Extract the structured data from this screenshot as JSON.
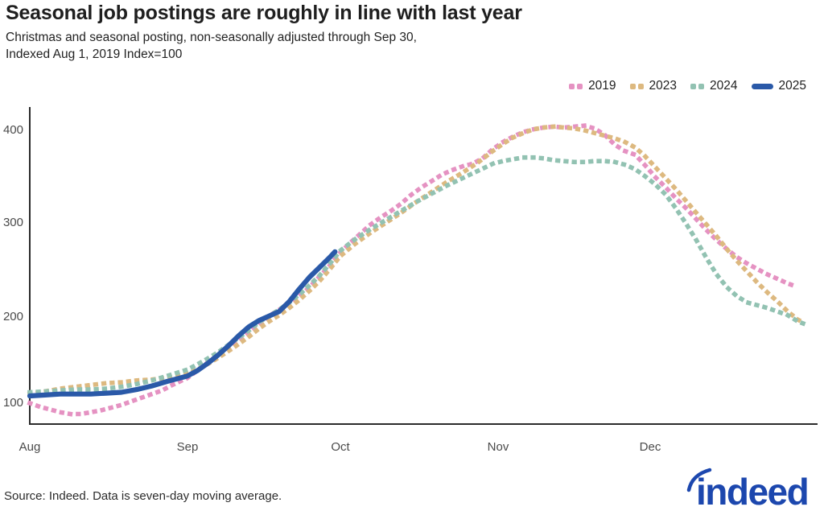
{
  "header": {
    "title": "Seasonal job postings are roughly in line with last year",
    "subtitle_line1": "Christmas and seasonal posting, non-seasonally adjusted through Sep 30,",
    "subtitle_line2": "Indexed Aug 1, 2019 Index=100"
  },
  "legend": {
    "items": [
      {
        "label": "2019",
        "color": "#e592c2",
        "style": "dotted"
      },
      {
        "label": "2023",
        "color": "#ddb980",
        "style": "dotted"
      },
      {
        "label": "2024",
        "color": "#92c2b2",
        "style": "dotted"
      },
      {
        "label": "2025",
        "color": "#2a59a8",
        "style": "solid"
      }
    ]
  },
  "chart_data": {
    "type": "line",
    "title": "Seasonal job postings are roughly in line with last year",
    "x_axis": {
      "unit": "days since Aug 1",
      "tick_labels": [
        "Aug",
        "Sep",
        "Oct",
        "Nov",
        "Dec"
      ],
      "tick_days": [
        0,
        31,
        61,
        92,
        122
      ],
      "range_days": [
        0,
        152
      ]
    },
    "y_axis": {
      "tick_labels": [
        "100",
        "200",
        "300",
        "400"
      ],
      "ticks": [
        100,
        200,
        300,
        400
      ],
      "range": [
        77,
        425
      ],
      "grid": false
    },
    "legend_position": "top-right",
    "series": [
      {
        "name": "2019",
        "color": "#e592c2",
        "line_style": "dotted",
        "points": [
          [
            0,
            100
          ],
          [
            2,
            96
          ],
          [
            4,
            93
          ],
          [
            6,
            90
          ],
          [
            8,
            88
          ],
          [
            10,
            88
          ],
          [
            12,
            90
          ],
          [
            14,
            92
          ],
          [
            16,
            95
          ],
          [
            18,
            98
          ],
          [
            20,
            102
          ],
          [
            22,
            106
          ],
          [
            24,
            110
          ],
          [
            26,
            114
          ],
          [
            28,
            120
          ],
          [
            31,
            128
          ],
          [
            33,
            136
          ],
          [
            35,
            145
          ],
          [
            37,
            153
          ],
          [
            39,
            161
          ],
          [
            41,
            170
          ],
          [
            43,
            179
          ],
          [
            45,
            188
          ],
          [
            47,
            196
          ],
          [
            49,
            203
          ],
          [
            51,
            210
          ],
          [
            53,
            218
          ],
          [
            55,
            228
          ],
          [
            57,
            240
          ],
          [
            59,
            252
          ],
          [
            61,
            266
          ],
          [
            63,
            277
          ],
          [
            65,
            287
          ],
          [
            67,
            297
          ],
          [
            69,
            305
          ],
          [
            71,
            312
          ],
          [
            73,
            320
          ],
          [
            75,
            330
          ],
          [
            77,
            338
          ],
          [
            79,
            345
          ],
          [
            81,
            352
          ],
          [
            83,
            357
          ],
          [
            85,
            361
          ],
          [
            87,
            364
          ],
          [
            89,
            370
          ],
          [
            91,
            380
          ],
          [
            93,
            388
          ],
          [
            95,
            394
          ],
          [
            97,
            399
          ],
          [
            99,
            402
          ],
          [
            101,
            404
          ],
          [
            103,
            405
          ],
          [
            105,
            404
          ],
          [
            107,
            405
          ],
          [
            109,
            406
          ],
          [
            111,
            403
          ],
          [
            113,
            396
          ],
          [
            115,
            385
          ],
          [
            117,
            378
          ],
          [
            119,
            374
          ],
          [
            121,
            362
          ],
          [
            123,
            349
          ],
          [
            125,
            338
          ],
          [
            127,
            326
          ],
          [
            129,
            315
          ],
          [
            131,
            303
          ],
          [
            133,
            291
          ],
          [
            135,
            280
          ],
          [
            137,
            270
          ],
          [
            139,
            261
          ],
          [
            141,
            254
          ],
          [
            143,
            248
          ],
          [
            145,
            242
          ],
          [
            147,
            237
          ],
          [
            149,
            232
          ],
          [
            151,
            228
          ]
        ]
      },
      {
        "name": "2023",
        "color": "#ddb980",
        "line_style": "dotted",
        "points": [
          [
            0,
            110
          ],
          [
            3,
            113
          ],
          [
            6,
            116
          ],
          [
            9,
            118
          ],
          [
            12,
            120
          ],
          [
            15,
            122
          ],
          [
            18,
            123
          ],
          [
            21,
            125
          ],
          [
            24,
            126
          ],
          [
            27,
            128
          ],
          [
            31,
            132
          ],
          [
            34,
            140
          ],
          [
            37,
            150
          ],
          [
            40,
            161
          ],
          [
            43,
            173
          ],
          [
            45,
            182
          ],
          [
            47,
            190
          ],
          [
            49,
            197
          ],
          [
            51,
            205
          ],
          [
            53,
            214
          ],
          [
            55,
            224
          ],
          [
            57,
            235
          ],
          [
            59,
            248
          ],
          [
            61,
            262
          ],
          [
            64,
            276
          ],
          [
            67,
            288
          ],
          [
            70,
            299
          ],
          [
            73,
            310
          ],
          [
            76,
            322
          ],
          [
            79,
            333
          ],
          [
            82,
            344
          ],
          [
            85,
            354
          ],
          [
            88,
            365
          ],
          [
            91,
            378
          ],
          [
            93,
            386
          ],
          [
            95,
            393
          ],
          [
            97,
            398
          ],
          [
            99,
            402
          ],
          [
            101,
            404
          ],
          [
            103,
            405
          ],
          [
            105,
            404
          ],
          [
            107,
            403
          ],
          [
            109,
            401
          ],
          [
            111,
            398
          ],
          [
            113,
            395
          ],
          [
            115,
            392
          ],
          [
            117,
            388
          ],
          [
            119,
            382
          ],
          [
            121,
            372
          ],
          [
            123,
            360
          ],
          [
            125,
            348
          ],
          [
            127,
            336
          ],
          [
            129,
            323
          ],
          [
            131,
            310
          ],
          [
            133,
            297
          ],
          [
            135,
            284
          ],
          [
            137,
            270
          ],
          [
            139,
            257
          ],
          [
            141,
            245
          ],
          [
            143,
            233
          ],
          [
            145,
            222
          ],
          [
            147,
            212
          ],
          [
            149,
            201
          ],
          [
            151,
            192
          ],
          [
            152,
            189
          ]
        ]
      },
      {
        "name": "2024",
        "color": "#92c2b2",
        "line_style": "dotted",
        "points": [
          [
            0,
            112
          ],
          [
            3,
            113
          ],
          [
            6,
            114
          ],
          [
            9,
            115
          ],
          [
            12,
            115
          ],
          [
            15,
            116
          ],
          [
            18,
            118
          ],
          [
            21,
            121
          ],
          [
            24,
            125
          ],
          [
            27,
            130
          ],
          [
            31,
            137
          ],
          [
            34,
            146
          ],
          [
            37,
            156
          ],
          [
            40,
            168
          ],
          [
            43,
            180
          ],
          [
            45,
            189
          ],
          [
            47,
            196
          ],
          [
            49,
            203
          ],
          [
            51,
            211
          ],
          [
            53,
            220
          ],
          [
            55,
            230
          ],
          [
            57,
            241
          ],
          [
            59,
            254
          ],
          [
            61,
            268
          ],
          [
            64,
            281
          ],
          [
            67,
            292
          ],
          [
            70,
            302
          ],
          [
            73,
            312
          ],
          [
            76,
            322
          ],
          [
            79,
            331
          ],
          [
            82,
            340
          ],
          [
            85,
            348
          ],
          [
            88,
            356
          ],
          [
            91,
            364
          ],
          [
            93,
            367
          ],
          [
            95,
            369
          ],
          [
            97,
            371
          ],
          [
            99,
            371
          ],
          [
            101,
            370
          ],
          [
            103,
            368
          ],
          [
            105,
            367
          ],
          [
            107,
            366
          ],
          [
            109,
            366
          ],
          [
            111,
            367
          ],
          [
            113,
            367
          ],
          [
            115,
            366
          ],
          [
            117,
            363
          ],
          [
            119,
            358
          ],
          [
            121,
            350
          ],
          [
            123,
            341
          ],
          [
            125,
            330
          ],
          [
            127,
            315
          ],
          [
            129,
            298
          ],
          [
            131,
            280
          ],
          [
            133,
            260
          ],
          [
            135,
            242
          ],
          [
            137,
            228
          ],
          [
            139,
            218
          ],
          [
            141,
            211
          ],
          [
            143,
            208
          ],
          [
            145,
            205
          ],
          [
            147,
            201
          ],
          [
            149,
            197
          ],
          [
            151,
            190
          ],
          [
            152,
            188
          ]
        ]
      },
      {
        "name": "2025",
        "color": "#2a59a8",
        "line_style": "solid",
        "points": [
          [
            0,
            108
          ],
          [
            3,
            109
          ],
          [
            6,
            110
          ],
          [
            9,
            110
          ],
          [
            12,
            110
          ],
          [
            15,
            111
          ],
          [
            18,
            112
          ],
          [
            21,
            115
          ],
          [
            24,
            119
          ],
          [
            27,
            124
          ],
          [
            31,
            130
          ],
          [
            33,
            136
          ],
          [
            35,
            144
          ],
          [
            37,
            153
          ],
          [
            39,
            163
          ],
          [
            41,
            174
          ],
          [
            43,
            184
          ],
          [
            45,
            191
          ],
          [
            47,
            196
          ],
          [
            49,
            201
          ],
          [
            51,
            212
          ],
          [
            53,
            226
          ],
          [
            55,
            239
          ],
          [
            57,
            250
          ],
          [
            59,
            261
          ],
          [
            60,
            267
          ]
        ]
      }
    ]
  },
  "footer": {
    "source": "Source: Indeed. Data is seven-day moving average.",
    "logo_text": "indeed"
  },
  "colors": {
    "accent_2019": "#e592c2",
    "accent_2023": "#ddb980",
    "accent_2024": "#92c2b2",
    "accent_2025": "#2a59a8",
    "logo_blue": "#1c47ae",
    "axis": "#2b2b2b",
    "tick_text": "#4a4a4a"
  }
}
